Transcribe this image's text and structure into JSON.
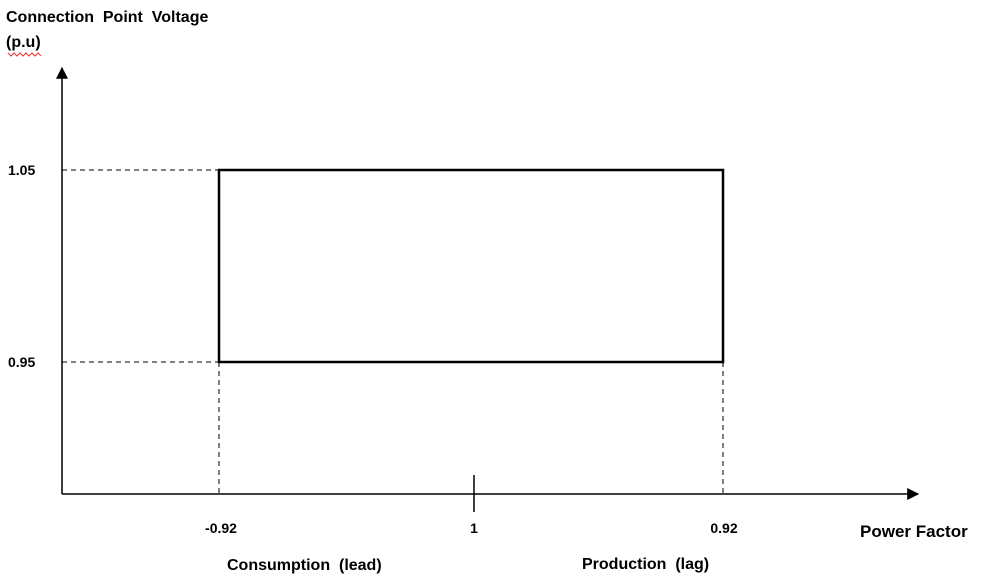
{
  "chart_data": {
    "type": "diagram",
    "ylabel_lines": [
      "Connection  Point  Voltage",
      "(p.u)"
    ],
    "xlabel": "Power Factor",
    "y_ticks": [
      {
        "value": 1.05,
        "label": "1.05"
      },
      {
        "value": 0.95,
        "label": "0.95"
      }
    ],
    "x_ticks": [
      {
        "value": -0.92,
        "label": "-0.92"
      },
      {
        "value": 1,
        "label": "1"
      },
      {
        "value": 0.92,
        "label": "0.92"
      }
    ],
    "region_labels": {
      "left": "Consumption  (lead)",
      "right": "Production  (lag)"
    },
    "operating_region": {
      "pf_min": -0.92,
      "pf_max": 0.92,
      "v_min": 0.95,
      "v_max": 1.05
    },
    "grid": false,
    "legend": "none",
    "colors": {
      "line": "#000000",
      "spellcheck": "#e53935"
    }
  }
}
